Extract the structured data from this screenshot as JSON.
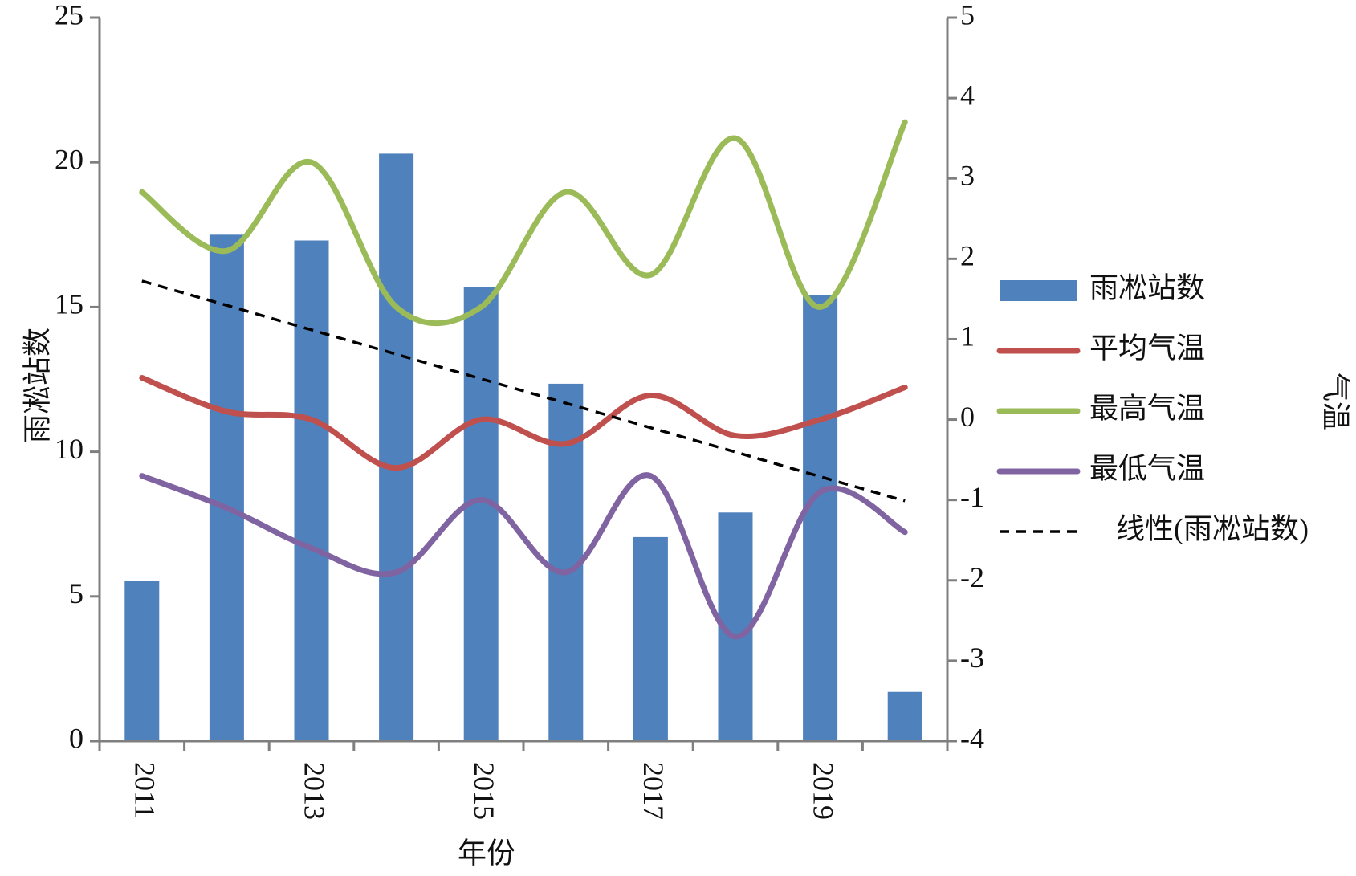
{
  "chart_data": {
    "type": "bar",
    "x_label": "年份",
    "y_label": "雨凇站数",
    "y2_label": "气温",
    "categories": [
      "2011",
      null,
      "2013",
      null,
      "2015",
      null,
      "2017",
      null,
      "2019",
      null
    ],
    "ylim": [
      0,
      25
    ],
    "yticks": [
      0,
      5,
      10,
      15,
      20,
      25
    ],
    "y2lim": [
      -4,
      5
    ],
    "y2ticks": [
      -4,
      -3,
      -2,
      -1,
      0,
      1,
      2,
      3,
      4,
      5
    ],
    "series": [
      {
        "name": "雨凇站数",
        "type": "bar",
        "color": "#4f81bd",
        "values": [
          5.55,
          17.5,
          17.3,
          20.3,
          15.7,
          12.35,
          7.05,
          7.9,
          15.4,
          1.7
        ]
      },
      {
        "name": "平均气温",
        "type": "line",
        "axis": "y2",
        "smooth": true,
        "color": "#c0504d",
        "values": [
          0.52,
          0.1,
          0,
          -0.6,
          0,
          -0.3,
          0.3,
          -0.2,
          0,
          0.4
        ]
      },
      {
        "name": "最高气温",
        "type": "line",
        "axis": "y2",
        "smooth": true,
        "color": "#9bbb59",
        "values": [
          2.83,
          2.1,
          3.2,
          1.4,
          1.4,
          2.83,
          1.8,
          3.5,
          1.4,
          3.7
        ]
      },
      {
        "name": "最低气温",
        "type": "line",
        "axis": "y2",
        "smooth": true,
        "color": "#8064a2",
        "values": [
          -0.7,
          -1.1,
          -1.6,
          -1.9,
          -1.0,
          -1.9,
          -0.7,
          -2.7,
          -0.9,
          -1.4
        ]
      },
      {
        "name": "线性(雨凇站数)",
        "type": "line",
        "dashed": true,
        "color": "#000000",
        "values": [
          15.9,
          15.06,
          14.21,
          13.37,
          12.52,
          11.68,
          10.83,
          9.99,
          9.14,
          8.3
        ]
      }
    ]
  }
}
